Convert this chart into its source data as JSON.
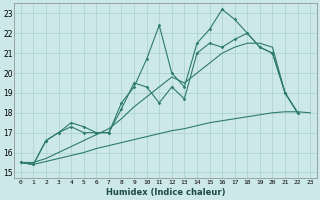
{
  "xlabel": "Humidex (Indice chaleur)",
  "bg_color": "#cde8e8",
  "grid_color": "#a8d0d0",
  "line_color": "#2d7a6e",
  "xlim": [
    -0.5,
    23.5
  ],
  "ylim": [
    14.7,
    23.5
  ],
  "xticks": [
    0,
    1,
    2,
    3,
    4,
    5,
    6,
    7,
    8,
    9,
    10,
    11,
    12,
    13,
    14,
    15,
    16,
    17,
    18,
    19,
    20,
    21,
    22,
    23
  ],
  "yticks": [
    15,
    16,
    17,
    18,
    19,
    20,
    21,
    22,
    23
  ],
  "line1_x": [
    0,
    1,
    2,
    3,
    4,
    5,
    6,
    7,
    8,
    9,
    10,
    11,
    12,
    13,
    14,
    15,
    16,
    17,
    18,
    19,
    20,
    21,
    22
  ],
  "line1_y": [
    15.5,
    15.4,
    16.6,
    17.0,
    17.5,
    17.3,
    17.0,
    17.0,
    18.5,
    19.3,
    20.7,
    22.4,
    20.0,
    19.3,
    21.5,
    22.2,
    23.2,
    22.7,
    22.0,
    21.3,
    21.0,
    19.0,
    18.0
  ],
  "line2_x": [
    0,
    1,
    2,
    3,
    4,
    5,
    6,
    7,
    8,
    9,
    10,
    11,
    12,
    13,
    14,
    15,
    16,
    17,
    18,
    19,
    20,
    21,
    22
  ],
  "line2_y": [
    15.5,
    15.4,
    16.6,
    17.0,
    17.3,
    17.0,
    17.0,
    17.0,
    18.2,
    19.5,
    19.3,
    18.5,
    19.3,
    18.7,
    21.0,
    21.5,
    21.3,
    21.7,
    22.0,
    21.3,
    21.0,
    19.0,
    18.0
  ],
  "line3_x": [
    0,
    1,
    2,
    3,
    4,
    5,
    6,
    7,
    8,
    9,
    10,
    11,
    12,
    13,
    14,
    15,
    16,
    17,
    18,
    19,
    20,
    21,
    22,
    23
  ],
  "line3_y": [
    15.5,
    15.4,
    15.55,
    15.7,
    15.85,
    16.0,
    16.2,
    16.35,
    16.5,
    16.65,
    16.8,
    16.95,
    17.1,
    17.2,
    17.35,
    17.5,
    17.6,
    17.7,
    17.8,
    17.9,
    18.0,
    18.05,
    18.05,
    18.0
  ],
  "line4_x": [
    0,
    1,
    2,
    3,
    4,
    5,
    6,
    7,
    8,
    9,
    10,
    11,
    12,
    13,
    14,
    15,
    16,
    17,
    18,
    19,
    20,
    21,
    22
  ],
  "line4_y": [
    15.5,
    15.5,
    15.7,
    16.0,
    16.3,
    16.6,
    16.9,
    17.2,
    17.7,
    18.3,
    18.8,
    19.3,
    19.8,
    19.5,
    20.0,
    20.5,
    21.0,
    21.3,
    21.5,
    21.5,
    21.3,
    19.0,
    18.0
  ]
}
